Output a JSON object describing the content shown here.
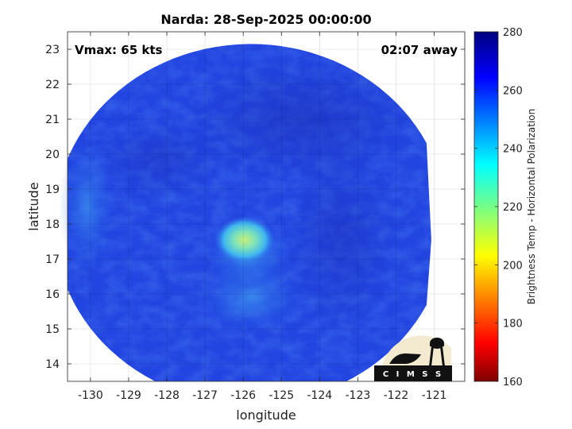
{
  "title": "Narda: 28-Sep-2025 00:00:00",
  "annotations": {
    "vmax": "Vmax: 65 kts",
    "away": "02:07 away"
  },
  "logo_text": "C I M S S",
  "chart_data": {
    "type": "heatmap",
    "title": "Narda: 28-Sep-2025 00:00:00",
    "xlabel": "longitude",
    "ylabel": "latitude",
    "xlim": [
      -130.6,
      -120.2
    ],
    "ylim": [
      13.5,
      23.5
    ],
    "x_ticks": [
      -130,
      -129,
      -128,
      -127,
      -126,
      -125,
      -124,
      -123,
      -122,
      -121
    ],
    "x_tick_labels": [
      "-130",
      "-129",
      "-128",
      "-127",
      "-126",
      "-125",
      "-124",
      "-123",
      "-122",
      "-121"
    ],
    "y_ticks": [
      14,
      15,
      16,
      17,
      18,
      19,
      20,
      21,
      22,
      23
    ],
    "y_tick_labels": [
      "14",
      "15",
      "16",
      "17",
      "18",
      "19",
      "20",
      "21",
      "22",
      "23"
    ],
    "grid": true,
    "colorbar": {
      "label": "Brightness Temp - Horizontal Polarization",
      "range": [
        160,
        280
      ],
      "ticks": [
        160,
        180,
        200,
        220,
        240,
        260,
        280
      ],
      "tick_labels": [
        "160",
        "180",
        "200",
        "220",
        "240",
        "260",
        "280"
      ],
      "colormap": "jet"
    },
    "swath": {
      "center_lon": -125.8,
      "center_lat": 18.0,
      "radius_deg": 5.15,
      "east_edge_lon": -121.2
    },
    "features": [
      {
        "name": "convective core",
        "lon": -125.9,
        "lat": 17.5,
        "brightness_temp": 225
      },
      {
        "name": "inner core",
        "lon": -125.6,
        "lat": 17.3,
        "brightness_temp": 240
      },
      {
        "name": "southern rainband",
        "lon": -125.6,
        "lat": 15.9,
        "brightness_temp": 250
      }
    ],
    "background_brightness_temp": 265
  }
}
